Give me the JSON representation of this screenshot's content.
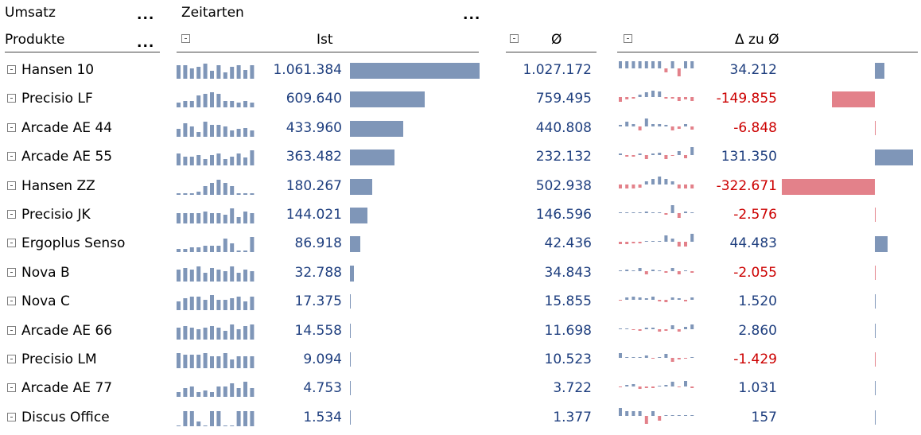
{
  "header": {
    "measure_label": "Umsatz",
    "measure_more": "...",
    "dimension_label": "Produkte",
    "dimension_more": "...",
    "timetype_label": "Zeitarten",
    "timetype_more": "...",
    "col_ist": "Ist",
    "col_avg": "Ø",
    "col_delta": "Δ zu Ø"
  },
  "colors": {
    "positive": "#7f96b8",
    "negative": "#e3818a",
    "text_positive": "#1f3f7f",
    "text_negative": "#cc0000"
  },
  "rows": [
    {
      "name": "Hansen 10",
      "ist": "1.061.384",
      "ist_v": 1061384,
      "avg": "1.027.172",
      "delta": "34.212",
      "delta_v": 34212,
      "spark": [
        9,
        9,
        7,
        8,
        10,
        5,
        9,
        4,
        8,
        9,
        6,
        9
      ],
      "devs": [
        0.9,
        0.9,
        0.9,
        0.9,
        0.9,
        0.9,
        0.9,
        -0.5,
        0.9,
        -1,
        0.9,
        0.9
      ]
    },
    {
      "name": "Precisio LF",
      "ist": "609.640",
      "ist_v": 609640,
      "avg": "759.495",
      "delta": "-149.855",
      "delta_v": -149855,
      "spark": [
        3,
        4,
        4,
        8,
        9,
        10,
        9,
        4,
        4,
        3,
        4,
        3
      ],
      "devs": [
        -0.6,
        -0.3,
        -0.2,
        0.3,
        0.6,
        0.8,
        0.7,
        -0.2,
        -0.2,
        -0.5,
        -0.3,
        -0.5
      ]
    },
    {
      "name": "Arcade AE 44",
      "ist": "433.960",
      "ist_v": 433960,
      "avg": "440.808",
      "delta": "-6.848",
      "delta_v": -6848,
      "spark": [
        5,
        9,
        7,
        3,
        10,
        8,
        8,
        7,
        4,
        5,
        6,
        4
      ],
      "devs": [
        0.2,
        0.6,
        0.3,
        -0.5,
        1,
        0.3,
        0.3,
        0.2,
        -0.5,
        -0.3,
        0.3,
        -0.4
      ]
    },
    {
      "name": "Arcade AE 55",
      "ist": "363.482",
      "ist_v": 363482,
      "avg": "232.132",
      "delta": "131.350",
      "delta_v": 131350,
      "spark": [
        8,
        6,
        6,
        7,
        4,
        7,
        8,
        4,
        6,
        8,
        5,
        10
      ],
      "devs": [
        0.2,
        -0.2,
        -0.2,
        0.2,
        -0.5,
        0.2,
        0.3,
        -0.5,
        -0.1,
        0.5,
        -0.4,
        1
      ]
    },
    {
      "name": "Hansen ZZ",
      "ist": "180.267",
      "ist_v": 180267,
      "avg": "502.938",
      "delta": "-322.671",
      "delta_v": -322671,
      "spark": [
        1,
        1,
        1,
        2,
        6,
        8,
        10,
        8,
        6,
        1,
        1,
        1
      ],
      "devs": [
        -0.5,
        -0.5,
        -0.5,
        -0.4,
        0.4,
        0.7,
        1,
        0.7,
        0.4,
        -0.5,
        -0.5,
        -0.5
      ]
    },
    {
      "name": "Precisio JK",
      "ist": "144.021",
      "ist_v": 144021,
      "avg": "146.596",
      "delta": "-2.576",
      "delta_v": -2576,
      "spark": [
        6,
        6,
        6,
        6,
        7,
        6,
        6,
        5,
        9,
        4,
        7,
        6
      ],
      "devs": [
        0.1,
        0.1,
        0.1,
        0.1,
        0.2,
        0.1,
        0.1,
        -0.2,
        1,
        -0.6,
        0.2,
        0.1
      ]
    },
    {
      "name": "Ergoplus Senso",
      "ist": "86.918",
      "ist_v": 86918,
      "avg": "42.436",
      "delta": "44.483",
      "delta_v": 44483,
      "spark": [
        2,
        2,
        3,
        3,
        4,
        4,
        4,
        9,
        6,
        1,
        1,
        10
      ],
      "devs": [
        -0.3,
        -0.3,
        -0.2,
        -0.2,
        0.1,
        0.1,
        0.1,
        0.8,
        0.4,
        -0.6,
        -0.6,
        1
      ]
    },
    {
      "name": "Nova B",
      "ist": "32.788",
      "ist_v": 32788,
      "avg": "34.843",
      "delta": "-2.055",
      "delta_v": -2055,
      "spark": [
        8,
        9,
        8,
        10,
        6,
        9,
        8,
        7,
        10,
        6,
        8,
        7
      ],
      "devs": [
        0.1,
        0.2,
        0.1,
        0.4,
        -0.4,
        0.2,
        0.1,
        -0.2,
        0.4,
        -0.4,
        0.1,
        -0.2
      ]
    },
    {
      "name": "Nova C",
      "ist": "17.375",
      "ist_v": 17375,
      "avg": "15.855",
      "delta": "1.520",
      "delta_v": 1520,
      "spark": [
        6,
        8,
        9,
        9,
        7,
        10,
        7,
        7,
        8,
        9,
        6,
        9
      ],
      "devs": [
        -0.1,
        0.3,
        0.4,
        0.3,
        0.2,
        0.4,
        -0.2,
        -0.3,
        0.3,
        0.2,
        -0.2,
        0.3
      ]
    },
    {
      "name": "Arcade AE 66",
      "ist": "14.558",
      "ist_v": 14558,
      "avg": "11.698",
      "delta": "2.860",
      "delta_v": 2860,
      "spark": [
        8,
        9,
        8,
        7,
        8,
        9,
        8,
        6,
        10,
        7,
        9,
        10
      ],
      "devs": [
        0.1,
        0.1,
        -0.1,
        -0.2,
        0.2,
        0.2,
        -0.3,
        -0.2,
        0.5,
        -0.3,
        0.3,
        0.6
      ]
    },
    {
      "name": "Precisio LM",
      "ist": "9.094",
      "ist_v": 9094,
      "avg": "10.523",
      "delta": "-1.429",
      "delta_v": -1429,
      "spark": [
        10,
        9,
        9,
        9,
        10,
        8,
        8,
        10,
        6,
        8,
        8,
        8
      ],
      "devs": [
        0.6,
        0.1,
        0.1,
        0.1,
        0.3,
        -0.1,
        0.1,
        0.5,
        -0.5,
        -0.2,
        -0.1,
        0.1
      ]
    },
    {
      "name": "Arcade AE 77",
      "ist": "4.753",
      "ist_v": 4753,
      "avg": "3.722",
      "delta": "1.031",
      "delta_v": 1031,
      "spark": [
        3,
        5,
        6,
        3,
        4,
        3,
        6,
        6,
        8,
        5,
        9,
        5
      ],
      "devs": [
        -0.1,
        0.2,
        0.3,
        -0.3,
        -0.2,
        -0.2,
        0.1,
        0.2,
        0.6,
        -0.1,
        0.7,
        -0.2
      ]
    },
    {
      "name": "Discus Office",
      "ist": "1.534",
      "ist_v": 1534,
      "avg": "1.377",
      "delta": "157",
      "delta_v": 157,
      "spark": [
        0,
        10,
        10,
        3,
        0,
        10,
        10,
        0,
        0,
        10,
        10,
        10
      ],
      "devs": [
        1,
        0.6,
        0.6,
        0.6,
        -1,
        0.6,
        -0.6,
        0.1,
        0.1,
        0.1,
        0.1,
        0.1
      ]
    }
  ]
}
